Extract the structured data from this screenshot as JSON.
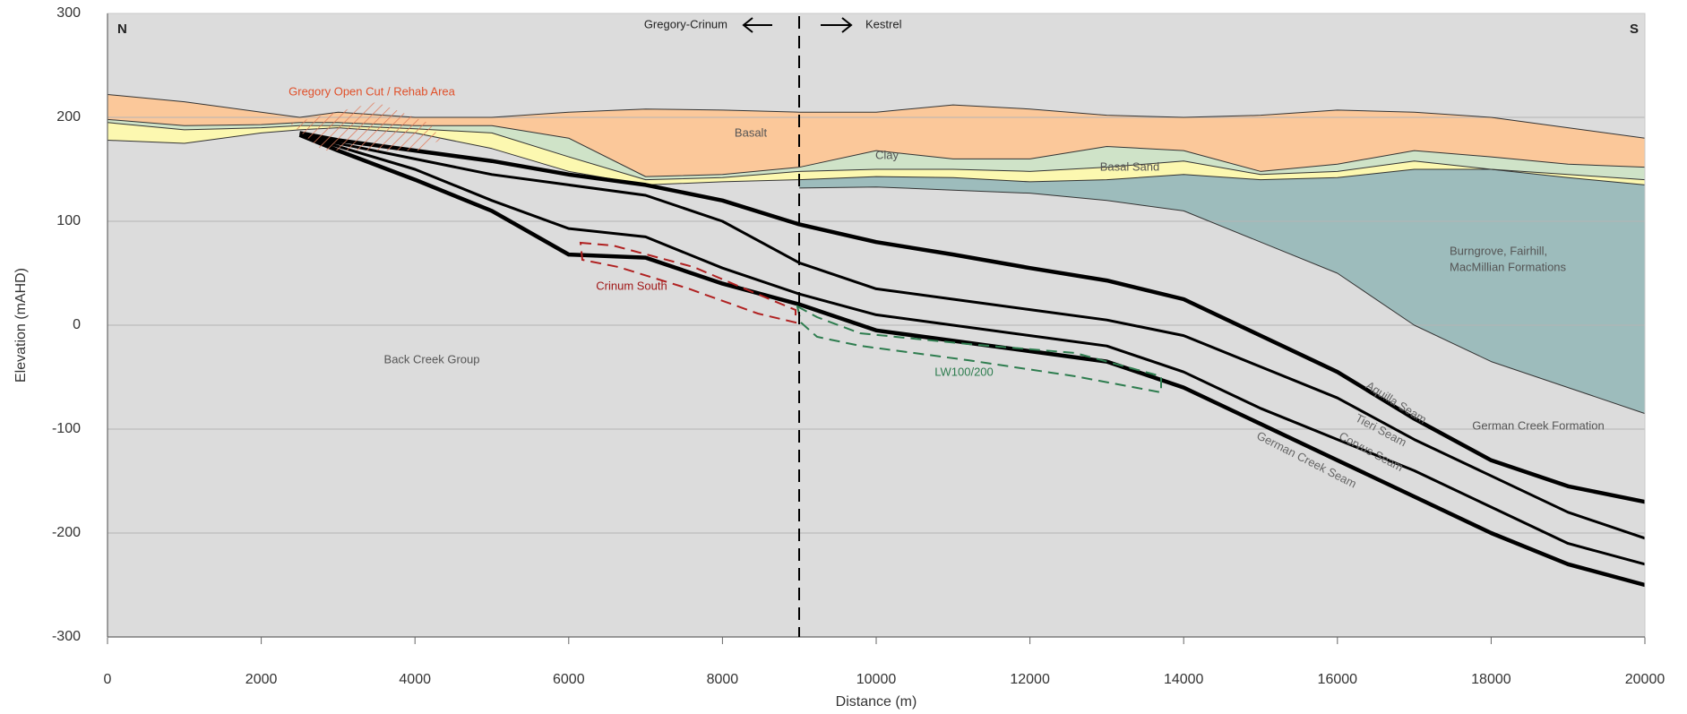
{
  "chart_data": {
    "type": "cross-section",
    "xlabel": "Distance (m)",
    "ylabel": "Elevation (mAHD)",
    "xlim": [
      0,
      20000
    ],
    "ylim": [
      -300,
      300
    ],
    "xticks": [
      0,
      2000,
      4000,
      6000,
      8000,
      10000,
      12000,
      14000,
      16000,
      18000,
      20000
    ],
    "yticks": [
      -300,
      -200,
      -100,
      0,
      100,
      200,
      300
    ],
    "grid": true,
    "background": {
      "name": "Back Creek Group",
      "color": "#dcdcdc"
    },
    "x": [
      0,
      1000,
      2000,
      2500,
      3000,
      4000,
      5000,
      6000,
      7000,
      8000,
      9000,
      10000,
      11000,
      12000,
      13000,
      14000,
      15000,
      16000,
      17000,
      18000,
      19000,
      20000
    ],
    "surface": [
      222,
      215,
      205,
      200,
      205,
      200,
      200,
      205,
      208,
      207,
      205,
      205,
      212,
      208,
      202,
      200,
      202,
      207,
      205,
      200,
      190,
      180
    ],
    "layers": [
      {
        "name": "Basalt",
        "color": "#fbc89a",
        "values": [
          198,
          192,
          193,
          195,
          195,
          192,
          192,
          180,
          143,
          145,
          152,
          168,
          160,
          160,
          172,
          168,
          148,
          155,
          168,
          162,
          155,
          152
        ]
      },
      {
        "name": "Clay",
        "color": "#cfe3c8",
        "values": [
          195,
          188,
          190,
          192,
          192,
          189,
          185,
          162,
          140,
          142,
          148,
          150,
          150,
          148,
          152,
          158,
          145,
          148,
          158,
          150,
          145,
          140
        ]
      },
      {
        "name": "Basal Sand",
        "color": "#fcf8b0",
        "values": [
          178,
          175,
          185,
          188,
          190,
          185,
          170,
          148,
          135,
          138,
          140,
          143,
          142,
          138,
          140,
          145,
          140,
          142,
          150,
          150,
          142,
          135
        ]
      },
      {
        "name_lines": [
          "Burngrove, Fairhill,",
          "MacMillian Formations"
        ],
        "color": "#9dbcbc",
        "values": [
          null,
          null,
          null,
          null,
          null,
          null,
          null,
          null,
          null,
          null,
          132,
          133,
          130,
          127,
          120,
          110,
          80,
          50,
          0,
          -35,
          -60,
          -85
        ]
      }
    ],
    "seams": [
      {
        "name": "Aquilla Seam",
        "color": "#000000",
        "values": [
          null,
          null,
          null,
          185,
          178,
          168,
          158,
          145,
          135,
          120,
          97,
          80,
          68,
          55,
          43,
          25,
          -10,
          -45,
          -90,
          -130,
          -155,
          -170
        ]
      },
      {
        "name": "Tieri Seam",
        "color": "#000000",
        "values": [
          null,
          null,
          null,
          183,
          175,
          160,
          145,
          135,
          125,
          100,
          60,
          35,
          25,
          15,
          5,
          -10,
          -40,
          -70,
          -110,
          -145,
          -180,
          -205
        ]
      },
      {
        "name": "Corvus Seam",
        "color": "#000000",
        "values": [
          null,
          null,
          null,
          183,
          172,
          150,
          120,
          93,
          85,
          55,
          30,
          10,
          0,
          -10,
          -20,
          -45,
          -80,
          -110,
          -140,
          -175,
          -210,
          -230
        ]
      },
      {
        "name": "German Creek Seam",
        "color": "#000000",
        "values": [
          null,
          null,
          null,
          183,
          168,
          140,
          110,
          68,
          65,
          40,
          20,
          -5,
          -15,
          -25,
          -35,
          -60,
          -95,
          -130,
          -165,
          -200,
          -230,
          -250
        ]
      }
    ],
    "annotations": {
      "north": "N",
      "south": "S",
      "left_mine": "Gregory-Crinum",
      "right_mine": "Kestrel",
      "open_cut": "Gregory Open Cut / Rehab Area",
      "crinum": "Crinum South",
      "longwall": "LW100/200",
      "formation": "German Creek Formation"
    }
  }
}
